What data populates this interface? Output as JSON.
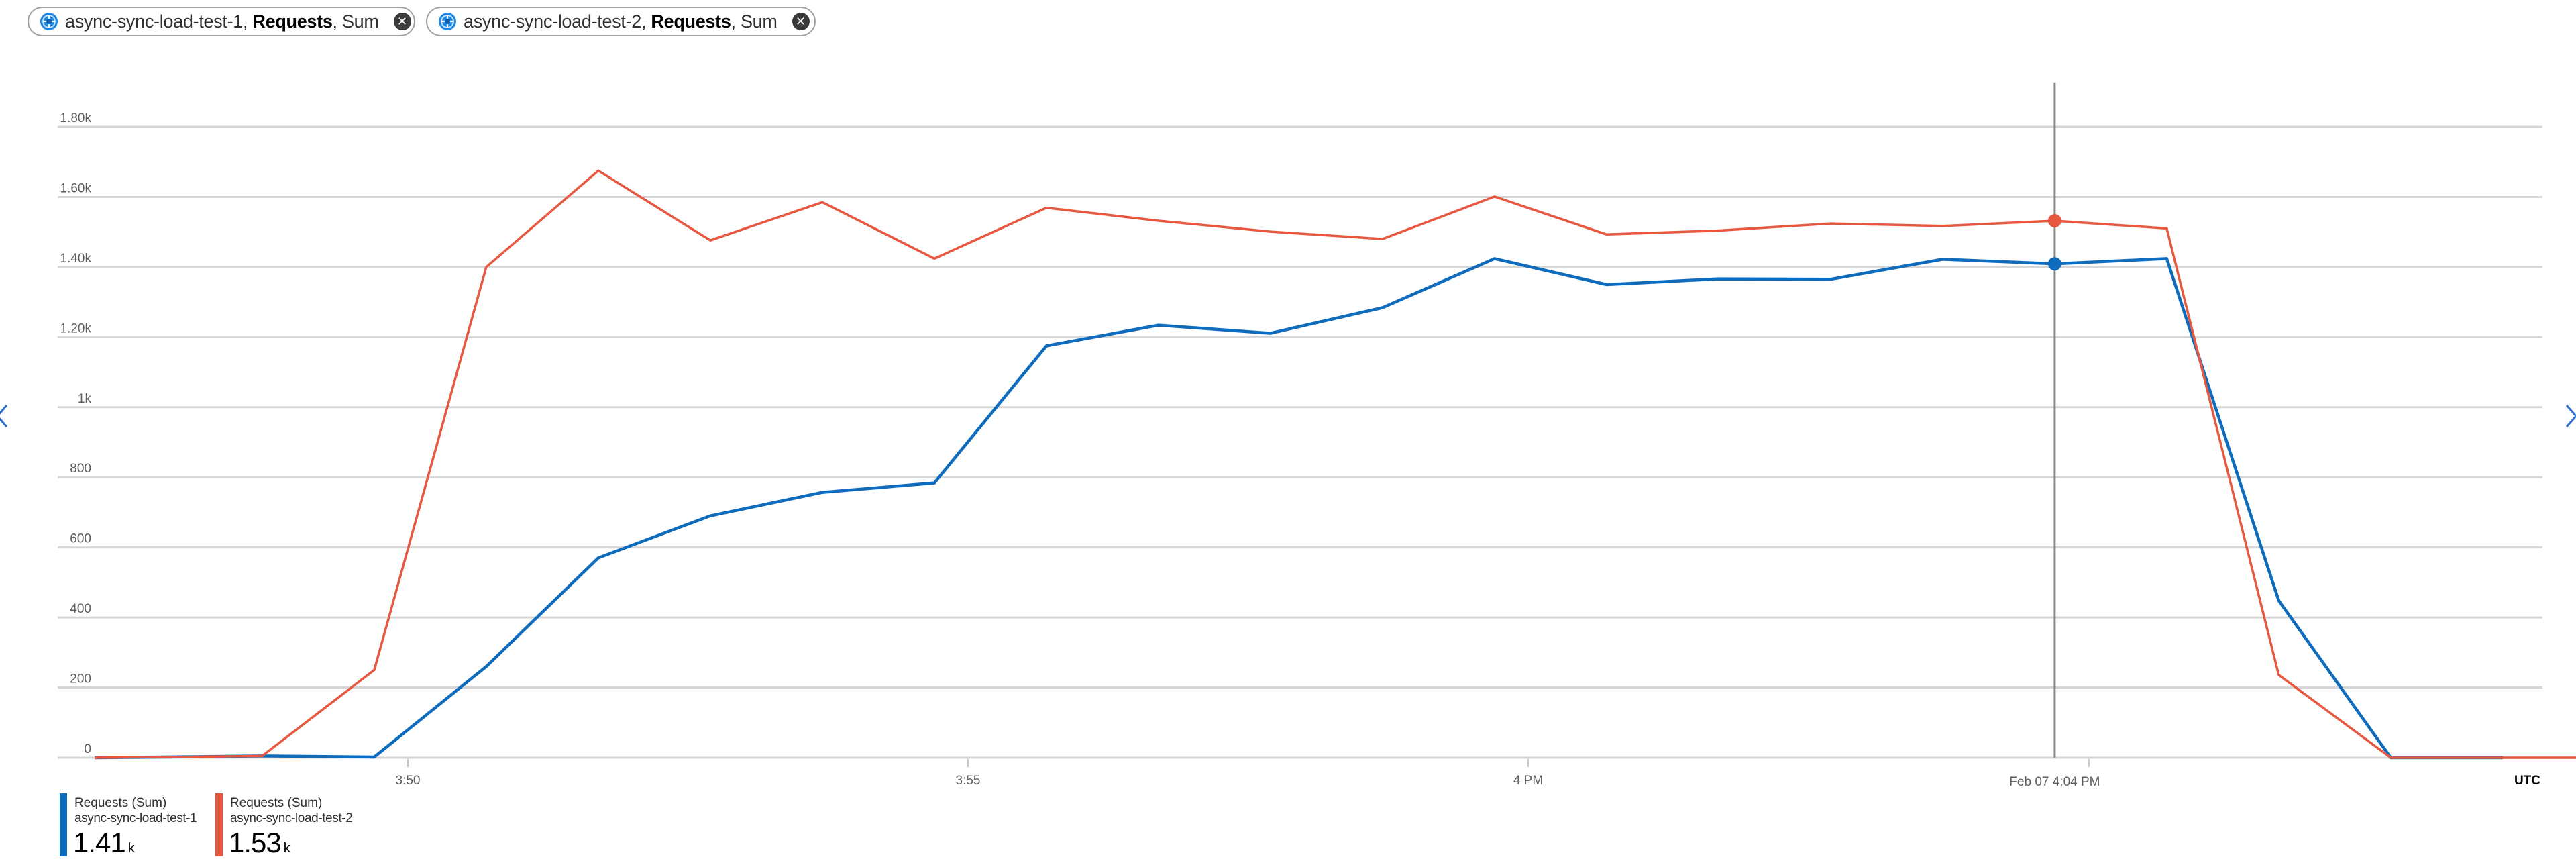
{
  "chips": [
    {
      "resource": "async-sync-load-test-1",
      "metric": "Requests",
      "aggregation": "Sum",
      "sep1": ", ",
      "sep2": ", ",
      "close_icon": "close-circle-icon",
      "icon": "app-service-icon"
    },
    {
      "resource": "async-sync-load-test-2",
      "metric": "Requests",
      "aggregation": "Sum",
      "sep1": ", ",
      "sep2": ", ",
      "close_icon": "close-circle-icon",
      "icon": "app-service-icon"
    }
  ],
  "nav": {
    "prev": "‹",
    "next": "›",
    "prev_icon": "chevron-left-icon",
    "next_icon": "chevron-right-icon"
  },
  "timezone": "UTC",
  "cursor": {
    "label": "Feb 07 4:04 PM"
  },
  "legend": [
    {
      "title": "Requests (Sum)",
      "resource": "async-sync-load-test-1",
      "value": "1.41",
      "unit": "k",
      "color": "#0f6cbd"
    },
    {
      "title": "Requests (Sum)",
      "resource": "async-sync-load-test-2",
      "value": "1.53",
      "unit": "k",
      "color": "#e8573f"
    }
  ],
  "chart_data": {
    "type": "line",
    "title": "",
    "xlabel": "",
    "ylabel": "",
    "ylim": [
      0,
      1800
    ],
    "grid": true,
    "legend_position": "bottom-left",
    "y_ticks": [
      {
        "value": 0,
        "label": "0"
      },
      {
        "value": 200,
        "label": "200"
      },
      {
        "value": 400,
        "label": "400"
      },
      {
        "value": 600,
        "label": "600"
      },
      {
        "value": 800,
        "label": "800"
      },
      {
        "value": 1000,
        "label": "1k"
      },
      {
        "value": 1200,
        "label": "1.20k"
      },
      {
        "value": 1400,
        "label": "1.40k"
      },
      {
        "value": 1600,
        "label": "1.60k"
      },
      {
        "value": 1800,
        "label": "1.80k"
      }
    ],
    "x_ticks": [
      {
        "minute": 0,
        "label": "3:50"
      },
      {
        "minute": 5,
        "label": "3:55"
      },
      {
        "minute": 10,
        "label": "4 PM"
      }
    ],
    "x_minutes_note": "minutes relative to 3:50 PM UTC, Feb 07",
    "x": [
      -2.8,
      -1.3,
      -0.3,
      0.7,
      1.7,
      2.7,
      3.7,
      4.7,
      5.7,
      6.7,
      7.7,
      8.7,
      9.7,
      10.7,
      11.7,
      12.7,
      13.7,
      14.7,
      15.7,
      16.7,
      17.7,
      18.7,
      19.7
    ],
    "series": [
      {
        "name": "async-sync-load-test-1 Requests (Sum)",
        "color": "#0f6cbd",
        "values": [
          0,
          5,
          2,
          260,
          570,
          690,
          757,
          784,
          1175,
          1234,
          1211,
          1284,
          1424,
          1350,
          1366,
          1365,
          1422,
          1409,
          1424,
          448,
          0,
          0,
          null
        ]
      },
      {
        "name": "async-sync-load-test-2 Requests (Sum)",
        "color": "#e8573f",
        "values": [
          0,
          5,
          250,
          1400,
          1675,
          1476,
          1585,
          1424,
          1569,
          1532,
          1501,
          1480,
          1601,
          1493,
          1504,
          1524,
          1517,
          1532,
          1510,
          236,
          0,
          0,
          0
        ]
      }
    ],
    "cursor_minute": 14.7,
    "cursor_values": {
      "async-sync-load-test-1": 1409,
      "async-sync-load-test-2": 1532
    }
  }
}
